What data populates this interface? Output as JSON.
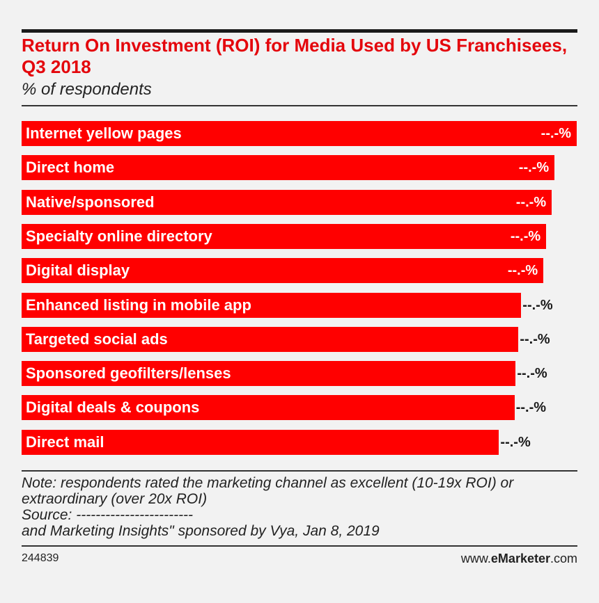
{
  "colors": {
    "bar": "#ff0000",
    "title": "#e4060c",
    "background": "#f2f2f2",
    "text": "#222222"
  },
  "chart_data": {
    "type": "bar",
    "orientation": "horizontal",
    "title": "Return On Investment (ROI) for Media Used by US Franchisees, Q3 2018",
    "subtitle": "% of respondents",
    "categories": [
      "Internet yellow pages",
      "Direct home",
      "Native/sponsored",
      "Specialty online directory",
      "Digital display",
      "Enhanced listing in mobile app",
      "Targeted social ads",
      "Sponsored geofilters/lenses",
      "Digital deals & coupons",
      "Direct mail"
    ],
    "values": [
      100,
      96,
      95.5,
      94.5,
      94,
      90,
      89.5,
      89,
      88.8,
      86
    ],
    "value_labels": [
      "--.-%",
      "--.-%",
      "--.-%",
      "--.-%",
      "--.-%",
      "--.-%",
      "--.-%",
      "--.-%",
      "--.-%",
      "--.-%"
    ],
    "xlim": [
      0,
      100
    ]
  },
  "note": {
    "lines": [
      "Note: respondents rated the marketing channel as excellent (10-19x ROI) or",
      "extraordinary (over 20x ROI)",
      "Source: ------------------------",
      "and Marketing Insights\" sponsored by Vya, Jan 8, 2019"
    ]
  },
  "footer": {
    "chart_id": "244839",
    "site_prefix": "www.",
    "site_brand": "eMarketer",
    "site_suffix": ".com"
  }
}
